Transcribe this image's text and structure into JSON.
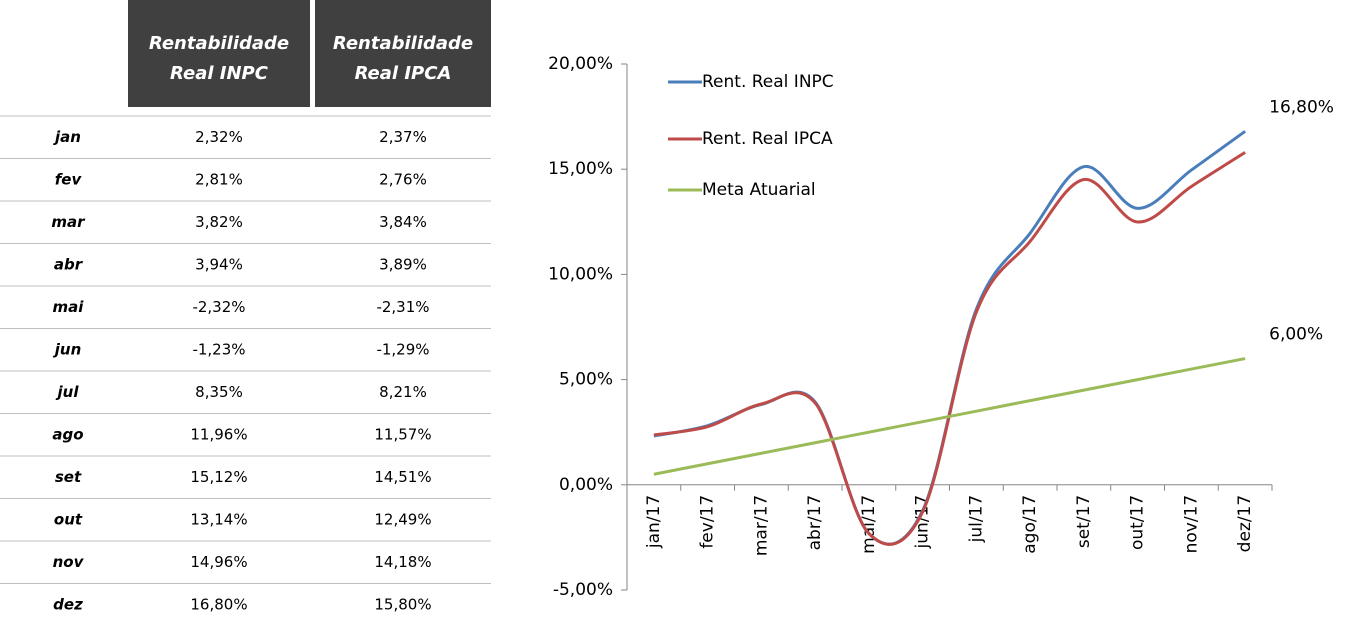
{
  "table": {
    "headers": [
      [
        "Rentabilidade",
        "Real INPC"
      ],
      [
        "Rentabilidade",
        "Real IPCA"
      ]
    ],
    "rows": [
      [
        "jan",
        "2,32%",
        "2,37%"
      ],
      [
        "fev",
        "2,81%",
        "2,76%"
      ],
      [
        "mar",
        "3,82%",
        "3,84%"
      ],
      [
        "abr",
        "3,94%",
        "3,89%"
      ],
      [
        "mai",
        "-2,32%",
        "-2,31%"
      ],
      [
        "jun",
        "-1,23%",
        "-1,29%"
      ],
      [
        "jul",
        "8,35%",
        "8,21%"
      ],
      [
        "ago",
        "11,96%",
        "11,57%"
      ],
      [
        "set",
        "15,12%",
        "14,51%"
      ],
      [
        "out",
        "13,14%",
        "12,49%"
      ],
      [
        "nov",
        "14,96%",
        "14,18%"
      ],
      [
        "dez",
        "16,80%",
        "15,80%"
      ]
    ]
  },
  "chart_data": {
    "type": "line",
    "categories": [
      "jan/17",
      "fev/17",
      "mar/17",
      "abr/17",
      "mai/17",
      "jun/17",
      "jul/17",
      "ago/17",
      "set/17",
      "out/17",
      "nov/17",
      "dez/17"
    ],
    "series": [
      {
        "name": "Rent. Real INPC",
        "color": "#4a7ebb",
        "values": [
          2.32,
          2.81,
          3.82,
          3.94,
          -2.32,
          -1.23,
          8.35,
          11.96,
          15.12,
          13.14,
          14.96,
          16.8
        ],
        "value_labels": [
          null,
          null,
          null,
          null,
          null,
          null,
          null,
          null,
          null,
          null,
          null,
          "16,80%"
        ]
      },
      {
        "name": "Rent. Real IPCA",
        "color": "#be4b48",
        "values": [
          2.37,
          2.76,
          3.84,
          3.89,
          -2.31,
          -1.29,
          8.21,
          11.57,
          14.51,
          12.49,
          14.18,
          15.8
        ]
      },
      {
        "name": "Meta Atuarial",
        "color": "#9bbb59",
        "values": [
          0.5,
          1.0,
          1.5,
          2.0,
          2.5,
          3.0,
          3.5,
          4.0,
          4.5,
          5.0,
          5.5,
          6.0
        ],
        "value_labels": [
          null,
          null,
          null,
          null,
          null,
          null,
          null,
          null,
          null,
          null,
          null,
          "6,00%"
        ]
      }
    ],
    "ylim": [
      -5,
      20
    ],
    "yticks": [
      {
        "value": -5,
        "label": "-5,00%"
      },
      {
        "value": 0,
        "label": "0,00%"
      },
      {
        "value": 5,
        "label": "5,00%"
      },
      {
        "value": 10,
        "label": "10,00%"
      },
      {
        "value": 15,
        "label": "15,00%"
      },
      {
        "value": 20,
        "label": "20,00%"
      }
    ],
    "smooth": true,
    "legend": "top-left"
  }
}
